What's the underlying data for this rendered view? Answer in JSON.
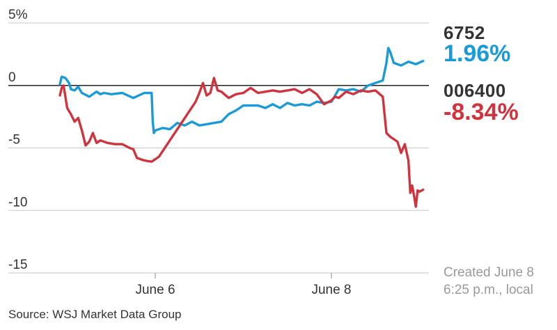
{
  "chart_data": {
    "type": "line",
    "title": "",
    "xlabel": "",
    "ylabel": "",
    "ylim": [
      -15,
      5
    ],
    "yticks": [
      5,
      0,
      -5,
      -10,
      -15
    ],
    "ytick_labels": [
      "5%",
      "0",
      "-5",
      "-10",
      "-15"
    ],
    "xlim": [
      0,
      100
    ],
    "xticks": [
      26,
      74
    ],
    "xtick_labels": [
      "June 6",
      "June 8"
    ],
    "series": [
      {
        "name": "6752",
        "color": "#1a9ad6",
        "last_change": "1.96%",
        "x": [
          0,
          0.5,
          1.5,
          2.5,
          3,
          4,
          5,
          6,
          8,
          10,
          11,
          12,
          14,
          17,
          20,
          23,
          25,
          25.3,
          25.6,
          26,
          28,
          30,
          32,
          34,
          36,
          38,
          40,
          42,
          44,
          46,
          48,
          50,
          52,
          54,
          56,
          58,
          60,
          62,
          64,
          66,
          68,
          70,
          72,
          74,
          75,
          76,
          78,
          80,
          82,
          84,
          86,
          88,
          89,
          89.5,
          90,
          91,
          93,
          95,
          97,
          99
        ],
        "values": [
          0.1,
          0.7,
          0.6,
          0.2,
          -0.3,
          -0.4,
          -0.1,
          -0.6,
          -0.9,
          -0.5,
          -0.7,
          -0.6,
          -0.7,
          -0.6,
          -1.0,
          -0.6,
          -0.6,
          -2.8,
          -3.8,
          -3.6,
          -3.4,
          -3.5,
          -3.0,
          -3.2,
          -2.9,
          -3.2,
          -3.1,
          -3.0,
          -2.9,
          -2.3,
          -2.0,
          -1.6,
          -1.6,
          -1.6,
          -1.8,
          -1.5,
          -1.8,
          -1.4,
          -1.6,
          -1.5,
          -1.6,
          -1.3,
          -1.4,
          -1.3,
          -0.8,
          -0.3,
          -0.4,
          -0.3,
          -0.5,
          0.0,
          0.2,
          0.4,
          1.8,
          3.0,
          2.7,
          1.8,
          1.6,
          1.9,
          1.7,
          1.96
        ]
      },
      {
        "name": "006400",
        "color": "#d1333c",
        "last_change": "-8.34%",
        "x": [
          0,
          0.5,
          1,
          1.5,
          2,
          3,
          4,
          5,
          6,
          7,
          8,
          9,
          10,
          11,
          13,
          15,
          17,
          19,
          20,
          21,
          23,
          25,
          27,
          37,
          38,
          39,
          40,
          41,
          42,
          43,
          44,
          46,
          48,
          50,
          52,
          54,
          56,
          58,
          60,
          62,
          64,
          66,
          68,
          70,
          72,
          74,
          75,
          76,
          78,
          80,
          82,
          84,
          86,
          88,
          89,
          90,
          91,
          92,
          93,
          94,
          95,
          95.5,
          96,
          96.5,
          97,
          97.5,
          98,
          99
        ],
        "values": [
          -0.8,
          -0.2,
          0.0,
          -0.9,
          -1.8,
          -2.3,
          -2.9,
          -2.6,
          -3.6,
          -4.8,
          -4.5,
          -3.8,
          -4.6,
          -4.4,
          -4.6,
          -4.7,
          -4.7,
          -5.0,
          -5.1,
          -5.8,
          -6.0,
          -6.1,
          -5.7,
          -1.3,
          -0.6,
          0.2,
          -0.8,
          -0.6,
          0.6,
          -0.4,
          -0.5,
          -1.0,
          -0.7,
          -0.6,
          -0.2,
          -0.6,
          -0.5,
          -0.4,
          -0.5,
          -0.4,
          -0.3,
          -0.6,
          -0.3,
          -0.7,
          -1.5,
          -1.2,
          -0.9,
          -1.0,
          -0.5,
          -0.7,
          -0.4,
          -0.5,
          -0.4,
          -0.9,
          -3.8,
          -4.1,
          -4.3,
          -4.5,
          -5.4,
          -4.7,
          -6.0,
          -8.6,
          -8.0,
          -8.8,
          -9.7,
          -8.4,
          -8.5,
          -8.34
        ]
      }
    ]
  },
  "legend": [
    {
      "ticker": "6752",
      "change": "1.96%",
      "color": "#1a9ad6"
    },
    {
      "ticker": "006400",
      "change": "-8.34%",
      "color": "#d1333c"
    }
  ],
  "created": {
    "line1": "Created June 8",
    "line2": "6:25 p.m., local"
  },
  "source": "Source: WSJ Market Data Group"
}
